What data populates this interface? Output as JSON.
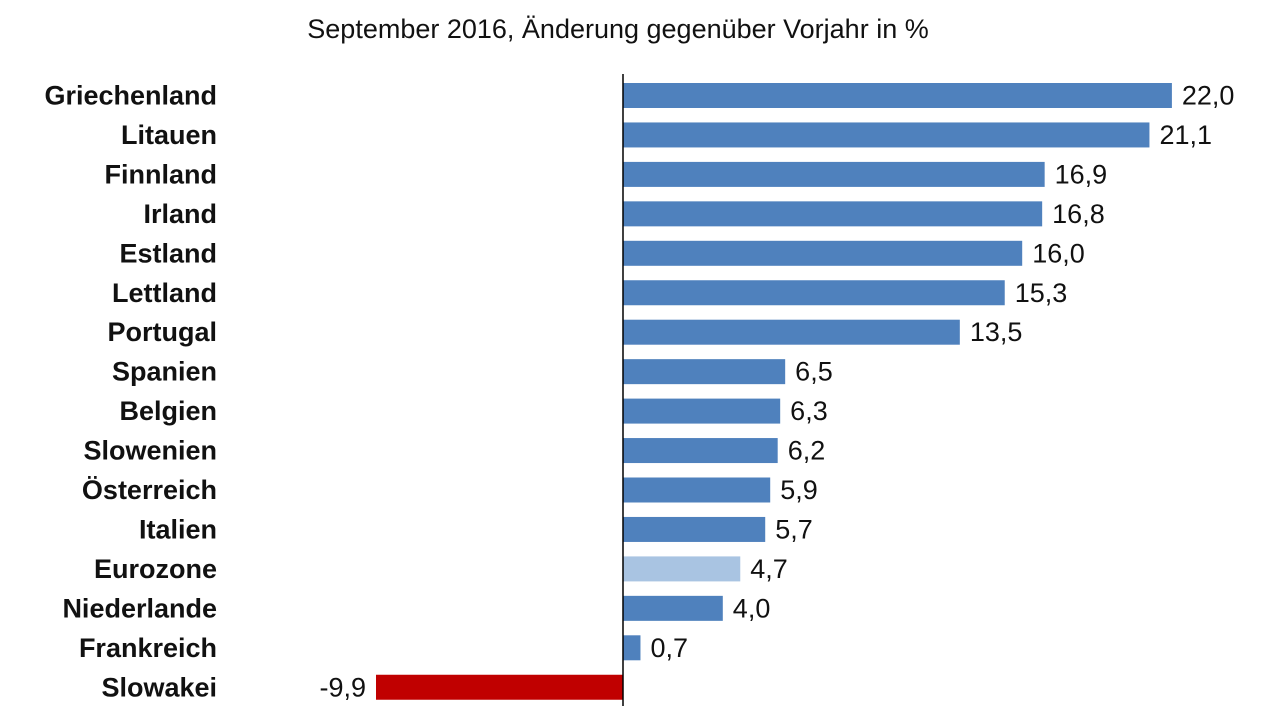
{
  "chart_data": {
    "type": "bar",
    "orientation": "horizontal",
    "title": "September 2016, Änderung gegenüber Vorjahr in %",
    "categories": [
      "Griechenland",
      "Litauen",
      "Finnland",
      "Irland",
      "Estland",
      "Lettland",
      "Portugal",
      "Spanien",
      "Belgien",
      "Slowenien",
      "Österreich",
      "Italien",
      "Eurozone",
      "Niederlande",
      "Frankreich",
      "Slowakei"
    ],
    "values": [
      22.0,
      21.1,
      16.9,
      16.8,
      16.0,
      15.3,
      13.5,
      6.5,
      6.3,
      6.2,
      5.9,
      5.7,
      4.7,
      4.0,
      0.7,
      -9.9
    ],
    "value_labels": [
      "22,0",
      "21,1",
      "16,9",
      "16,8",
      "16,0",
      "15,3",
      "13,5",
      "6,5",
      "6,3",
      "6,2",
      "5,9",
      "5,7",
      "4,7",
      "4,0",
      "0,7",
      "-9,9"
    ],
    "xlim": [
      -9.9,
      22.0
    ],
    "grid": false,
    "legend": "none",
    "colors": {
      "default": "#4f81bd",
      "highlight": "#a9c4e2",
      "negative": "#c00000",
      "axis": "#000000"
    },
    "highlight_category": "Eurozone"
  }
}
